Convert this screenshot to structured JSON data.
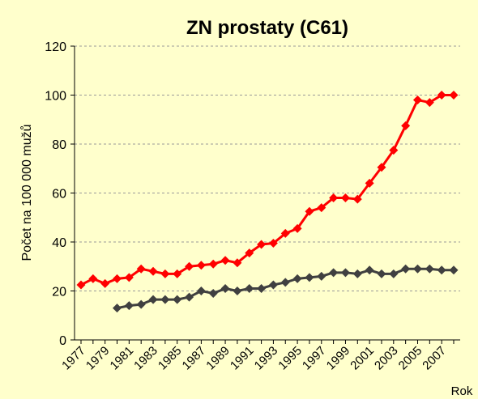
{
  "chart_data": {
    "type": "line",
    "title": "ZN prostaty (C61)",
    "y_label": "Počet na 100 000 mužů",
    "x_label": "Rok",
    "categories": [
      "1977",
      null,
      "1979",
      null,
      "1981",
      null,
      "1983",
      null,
      "1985",
      null,
      "1987",
      null,
      "1989",
      null,
      "1991",
      null,
      "1993",
      null,
      "1995",
      null,
      "1997",
      null,
      "1999",
      null,
      "2001",
      null,
      "2003",
      null,
      "2005",
      null,
      "2007",
      null
    ],
    "series": [
      {
        "color": "#ff0000",
        "values": [
          22.5,
          25,
          23,
          25,
          25.5,
          29,
          28,
          27,
          27,
          30,
          30.5,
          31,
          32.5,
          31.5,
          35.5,
          39,
          39.5,
          43.5,
          45.5,
          52.5,
          54,
          58,
          58,
          57.5,
          64,
          70.5,
          77.5,
          87.5,
          98,
          97,
          100,
          100
        ]
      },
      {
        "color": "#404040",
        "values": [
          null,
          null,
          null,
          13,
          14,
          14.5,
          16.5,
          16.5,
          16.5,
          17.5,
          20,
          19,
          21,
          20,
          21,
          21,
          22.5,
          23.5,
          25,
          25.5,
          26,
          27.5,
          27.5,
          27,
          28.5,
          27,
          27,
          29,
          29,
          29,
          28.5,
          28.5
        ]
      }
    ],
    "ylim": [
      0,
      120
    ],
    "yticks": [
      0,
      20,
      40,
      60,
      80,
      100,
      120
    ],
    "grid": true
  }
}
